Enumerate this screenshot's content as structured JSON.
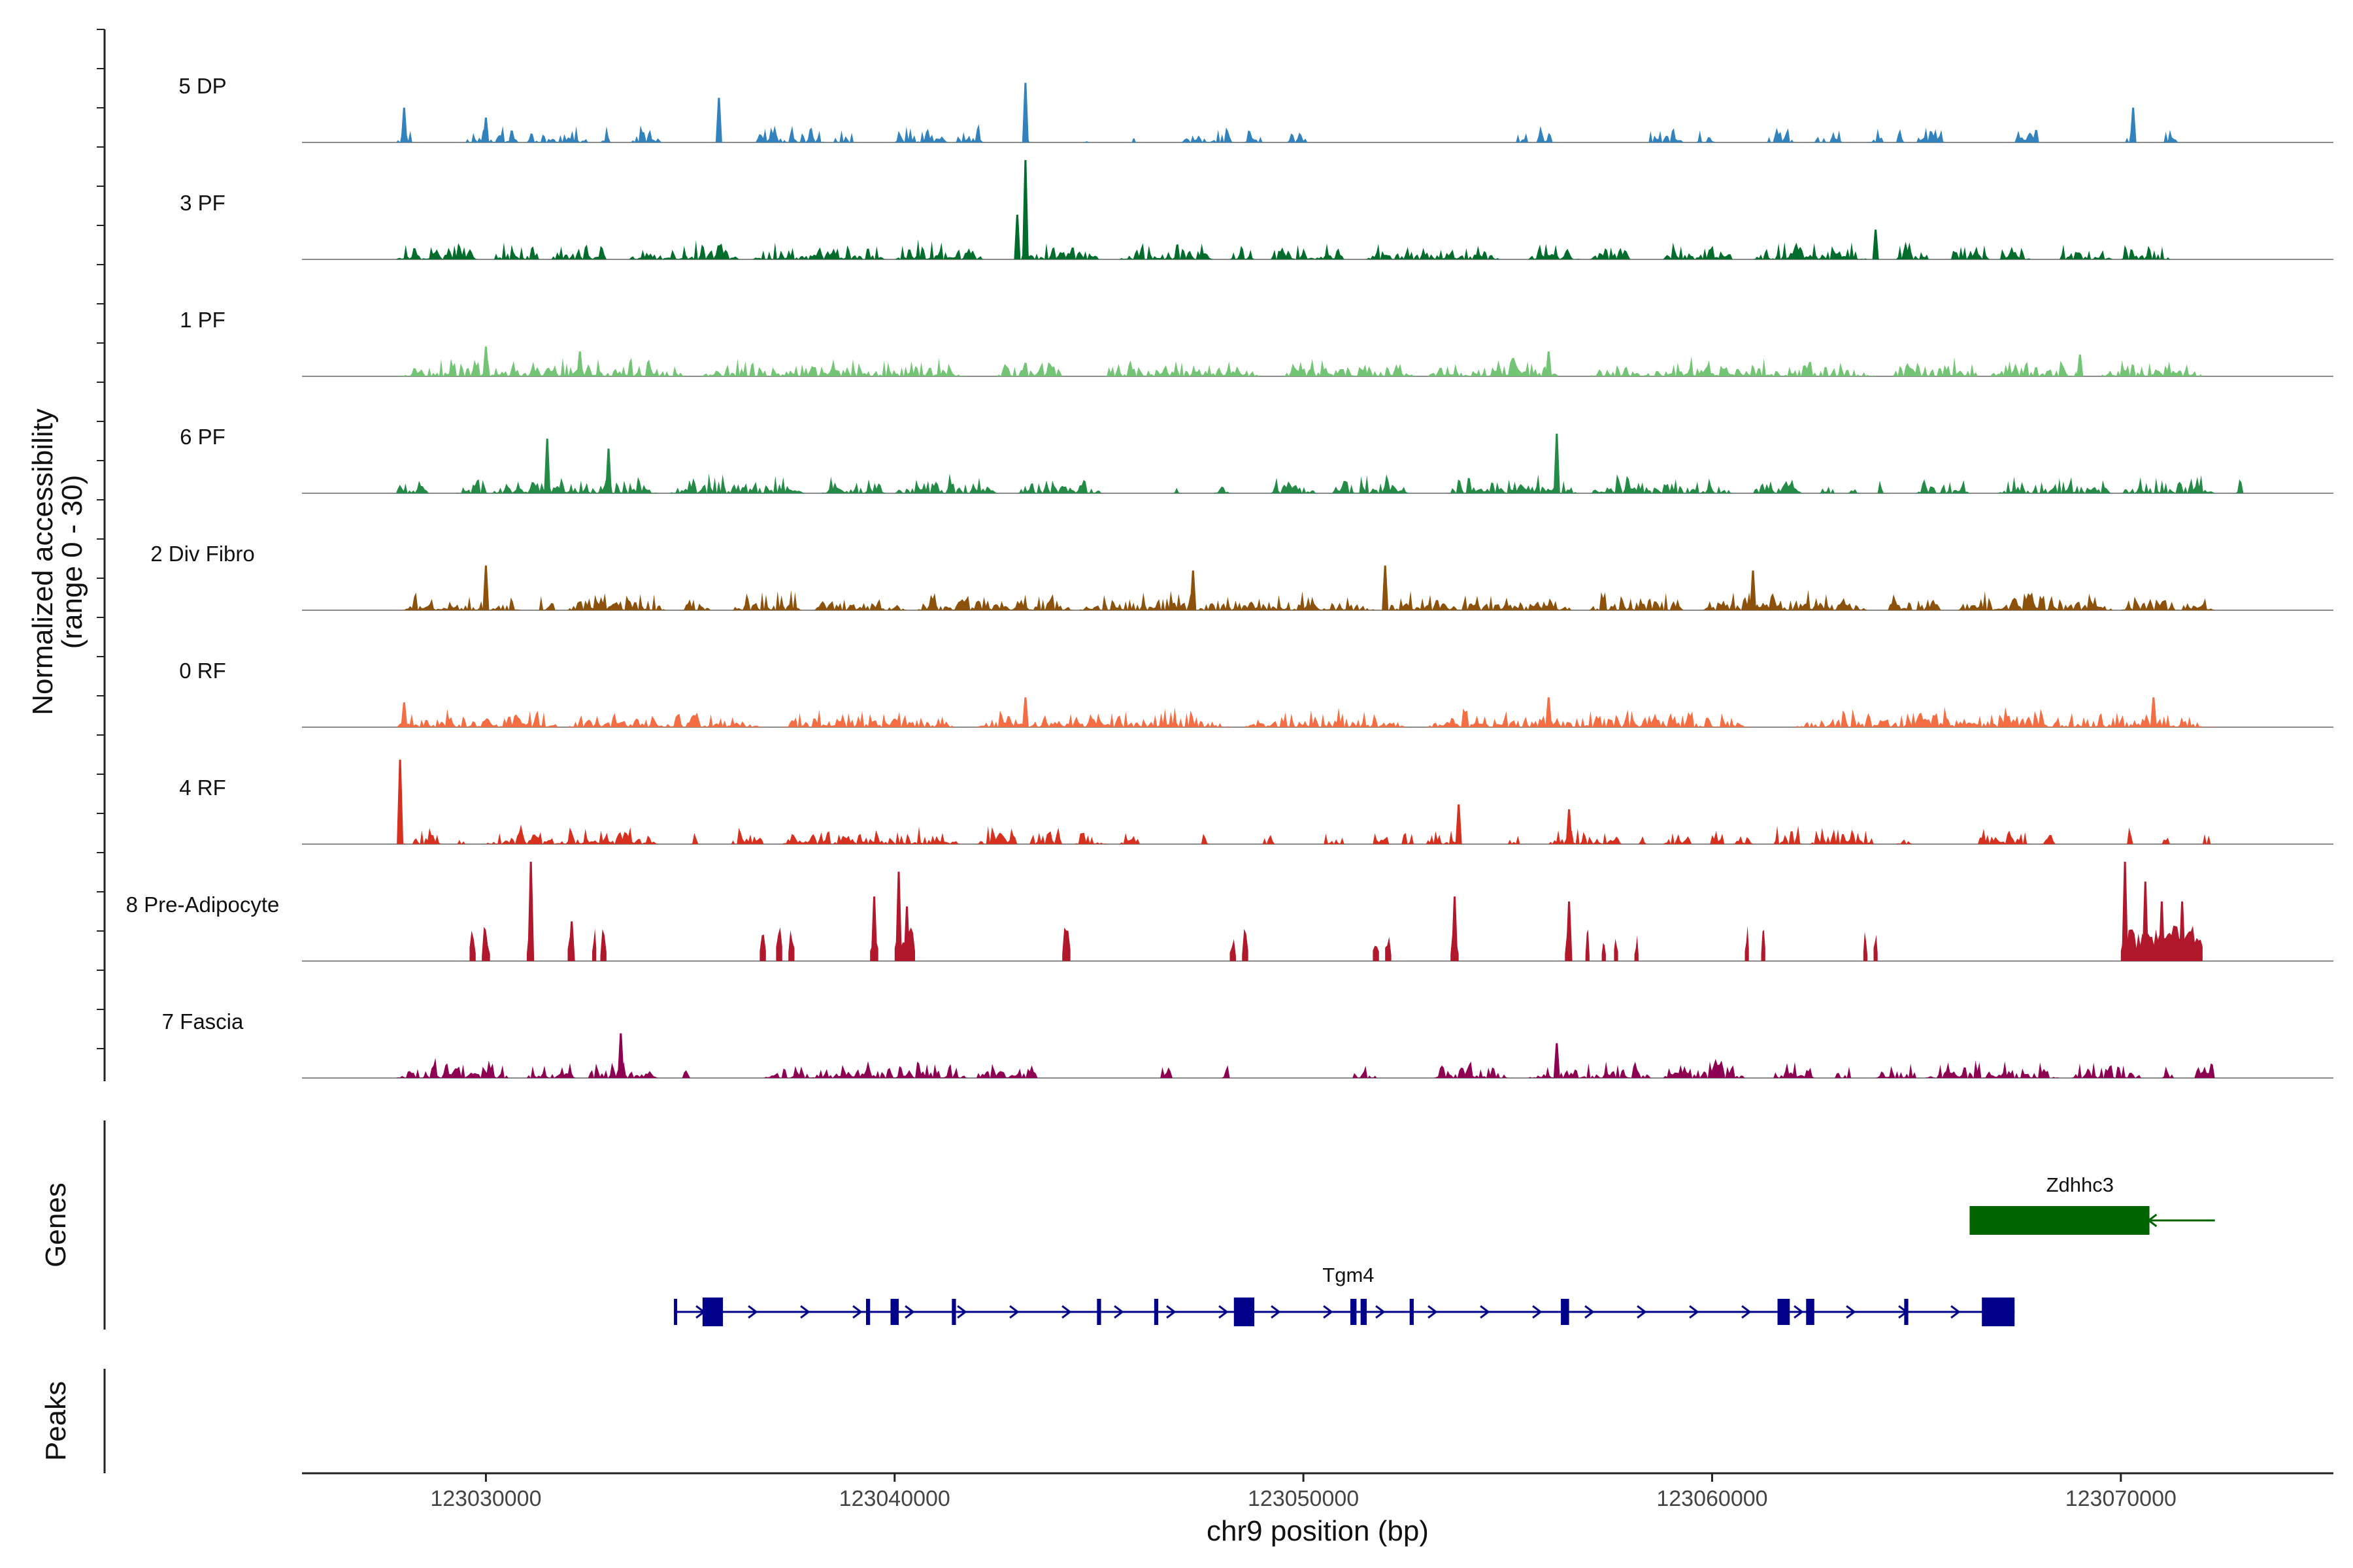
{
  "chart_data": {
    "type": "area",
    "title": "",
    "chromosome": "chr9",
    "xlabel": "chr9 position (bp)",
    "ylabel": "Normalized accessibility",
    "ylabel_sub": "(range 0 - 30)",
    "xlim": [
      123025500,
      123075200
    ],
    "ylim": [
      0,
      30
    ],
    "x_ticks": [
      123030000,
      123040000,
      123050000,
      123060000,
      123070000
    ],
    "x_tick_labels": [
      "123030000",
      "123040000",
      "123050000",
      "123060000",
      "123070000"
    ],
    "panels": [
      {
        "name": "Genes",
        "label": "Genes"
      },
      {
        "name": "Peaks",
        "label": "Peaks"
      }
    ],
    "tracks": [
      {
        "name": "5 DP",
        "color": "#3182bd",
        "regions": [
          [
            123027800,
            123028200
          ],
          [
            123029500,
            123030800
          ],
          [
            123031000,
            123032500
          ],
          [
            123032800,
            123033100
          ],
          [
            123033500,
            123034300
          ],
          [
            123036500,
            123038300
          ],
          [
            123038500,
            123039000
          ],
          [
            123040000,
            123041300
          ],
          [
            123041500,
            123042200
          ],
          [
            123043200,
            123043300
          ],
          [
            123044600,
            123044800
          ],
          [
            123045800,
            123045900
          ],
          [
            123047000,
            123048300
          ],
          [
            123048500,
            123049000
          ],
          [
            123049600,
            123050100
          ],
          [
            123055200,
            123055500
          ],
          [
            123055700,
            123056200
          ],
          [
            123058400,
            123059300
          ],
          [
            123059600,
            123060100
          ],
          [
            123061300,
            123062000
          ],
          [
            123062500,
            123063200
          ],
          [
            123063800,
            123064200
          ],
          [
            123064500,
            123064700
          ],
          [
            123065000,
            123065700
          ],
          [
            123067400,
            123068000
          ],
          [
            123070100,
            123070400
          ],
          [
            123071000,
            123071400
          ]
        ],
        "peaks": [
          [
            123028000,
            0.35
          ],
          [
            123030000,
            0.25
          ],
          [
            123035700,
            0.45
          ],
          [
            123043200,
            0.6
          ],
          [
            123070300,
            0.35
          ]
        ]
      },
      {
        "name": "3 PF",
        "color": "#006d2c",
        "regions": [
          [
            123027800,
            123029800
          ],
          [
            123030200,
            123031300
          ],
          [
            123031600,
            123033000
          ],
          [
            123033500,
            123036200
          ],
          [
            123036500,
            123039800
          ],
          [
            123040000,
            123042200
          ],
          [
            123043000,
            123045000
          ],
          [
            123045500,
            123047800
          ],
          [
            123048200,
            123048800
          ],
          [
            123049200,
            123051000
          ],
          [
            123051500,
            123054800
          ],
          [
            123055500,
            123056800
          ],
          [
            123057000,
            123058000
          ],
          [
            123058800,
            123060500
          ],
          [
            123061000,
            123063800
          ],
          [
            123064500,
            123065300
          ],
          [
            123065800,
            123066800
          ],
          [
            123067000,
            123067800
          ],
          [
            123068500,
            123069800
          ],
          [
            123070000,
            123071200
          ]
        ],
        "peaks": [
          [
            123043200,
            1.0
          ],
          [
            123043000,
            0.45
          ],
          [
            123064000,
            0.3
          ]
        ]
      },
      {
        "name": "1 PF",
        "color": "#74c476",
        "regions": [
          [
            123027800,
            123035000
          ],
          [
            123035200,
            123041800
          ],
          [
            123042500,
            123044100
          ],
          [
            123045000,
            123049000
          ],
          [
            123049500,
            123052800
          ],
          [
            123053000,
            123056300
          ],
          [
            123057000,
            123064000
          ],
          [
            123064400,
            123066500
          ],
          [
            123066800,
            123069000
          ],
          [
            123069500,
            123072000
          ]
        ],
        "peaks": [
          [
            123030000,
            0.3
          ],
          [
            123032300,
            0.25
          ],
          [
            123056000,
            0.25
          ],
          [
            123069000,
            0.22
          ]
        ]
      },
      {
        "name": "6 PF",
        "color": "#238b45",
        "regions": [
          [
            123027800,
            123028600
          ],
          [
            123029200,
            123034200
          ],
          [
            123034500,
            123037800
          ],
          [
            123038200,
            123039800
          ],
          [
            123040000,
            123042500
          ],
          [
            123043000,
            123045100
          ],
          [
            123046800,
            123047000
          ],
          [
            123047800,
            123048200
          ],
          [
            123049200,
            123050300
          ],
          [
            123050700,
            123052600
          ],
          [
            123053500,
            123056700
          ],
          [
            123057000,
            123060500
          ],
          [
            123061000,
            123062200
          ],
          [
            123062600,
            123063000
          ],
          [
            123063300,
            123063600
          ],
          [
            123064000,
            123064200
          ],
          [
            123065000,
            123066300
          ],
          [
            123067000,
            123069800
          ],
          [
            123070000,
            123072300
          ],
          [
            123072800,
            123073000
          ]
        ],
        "peaks": [
          [
            123031500,
            0.55
          ],
          [
            123033000,
            0.45
          ],
          [
            123056200,
            0.6
          ]
        ]
      },
      {
        "name": "2 Div Fibro",
        "color": "#8c510a",
        "regions": [
          [
            123028000,
            123030900
          ],
          [
            123031300,
            123031700
          ],
          [
            123032000,
            123034400
          ],
          [
            123034800,
            123035500
          ],
          [
            123036000,
            123037800
          ],
          [
            123038000,
            123040300
          ],
          [
            123040500,
            123044400
          ],
          [
            123044500,
            123051800
          ],
          [
            123052000,
            123056600
          ],
          [
            123057000,
            123059300
          ],
          [
            123059700,
            123063800
          ],
          [
            123064300,
            123064900
          ],
          [
            123065000,
            123065600
          ],
          [
            123066000,
            123069800
          ],
          [
            123070000,
            123072300
          ]
        ],
        "peaks": [
          [
            123030000,
            0.45
          ],
          [
            123047300,
            0.4
          ],
          [
            123052000,
            0.45
          ],
          [
            123061000,
            0.4
          ]
        ]
      },
      {
        "name": "0 RF",
        "color": "#f46d43",
        "regions": [
          [
            123027800,
            123031800
          ],
          [
            123032000,
            123036800
          ],
          [
            123037200,
            123041500
          ],
          [
            123042000,
            123048200
          ],
          [
            123048500,
            123052500
          ],
          [
            123053000,
            123061000
          ],
          [
            123062000,
            123072300
          ]
        ],
        "peaks": [
          [
            123028000,
            0.25
          ],
          [
            123043200,
            0.3
          ],
          [
            123056000,
            0.3
          ],
          [
            123070800,
            0.3
          ]
        ]
      },
      {
        "name": "4 RF",
        "color": "#d7301f",
        "regions": [
          [
            123027800,
            123028100
          ],
          [
            123028200,
            123028900
          ],
          [
            123029300,
            123029500
          ],
          [
            123030000,
            123034200
          ],
          [
            123035000,
            123035200
          ],
          [
            123036000,
            123036800
          ],
          [
            123037200,
            123041600
          ],
          [
            123042000,
            123043000
          ],
          [
            123043300,
            123044100
          ],
          [
            123044400,
            123045200
          ],
          [
            123045500,
            123046000
          ],
          [
            123047500,
            123047700
          ],
          [
            123049000,
            123049300
          ],
          [
            123050500,
            123051000
          ],
          [
            123051700,
            123052100
          ],
          [
            123052400,
            123052700
          ],
          [
            123053000,
            123053800
          ],
          [
            123055000,
            123055300
          ],
          [
            123056000,
            123057800
          ],
          [
            123058200,
            123058400
          ],
          [
            123058800,
            123059500
          ],
          [
            123059900,
            123060300
          ],
          [
            123060500,
            123061000
          ],
          [
            123061500,
            123062200
          ],
          [
            123062400,
            123064000
          ],
          [
            123064500,
            123064900
          ],
          [
            123066500,
            123067800
          ],
          [
            123068000,
            123068400
          ],
          [
            123070100,
            123070300
          ],
          [
            123071000,
            123071200
          ],
          [
            123072000,
            123072200
          ]
        ],
        "peaks": [
          [
            123027900,
            0.85
          ],
          [
            123053800,
            0.4
          ],
          [
            123056500,
            0.35
          ]
        ]
      },
      {
        "name": "8 Pre-Adipocyte",
        "color": "#b2182b",
        "regions": [
          [
            123029600,
            123029750
          ],
          [
            123029900,
            123030100
          ],
          [
            123031000,
            123031150
          ],
          [
            123032000,
            123032150
          ],
          [
            123032600,
            123032700
          ],
          [
            123032800,
            123032950
          ],
          [
            123036700,
            123036850
          ],
          [
            123037100,
            123037250
          ],
          [
            123037400,
            123037550
          ],
          [
            123039400,
            123039600
          ],
          [
            123040000,
            123040500
          ],
          [
            123044100,
            123044300
          ],
          [
            123048200,
            123048350
          ],
          [
            123048500,
            123048650
          ],
          [
            123051700,
            123051850
          ],
          [
            123052000,
            123052150
          ],
          [
            123053600,
            123053800
          ],
          [
            123056400,
            123056550
          ],
          [
            123056900,
            123057000
          ],
          [
            123057300,
            123057400
          ],
          [
            123057600,
            123057700
          ],
          [
            123058100,
            123058200
          ],
          [
            123060800,
            123060900
          ],
          [
            123061200,
            123061300
          ],
          [
            123063700,
            123063800
          ],
          [
            123063950,
            123064050
          ],
          [
            123070000,
            123072000
          ]
        ],
        "peaks": [
          [
            123031100,
            1.0
          ],
          [
            123032100,
            0.4
          ],
          [
            123039500,
            0.65
          ],
          [
            123040100,
            0.9
          ],
          [
            123040300,
            0.55
          ],
          [
            123053700,
            0.65
          ],
          [
            123056500,
            0.6
          ],
          [
            123070100,
            1.0
          ],
          [
            123070600,
            0.8
          ],
          [
            123071000,
            0.6
          ],
          [
            123071500,
            0.6
          ]
        ]
      },
      {
        "name": "7 Fascia",
        "color": "#8e0152",
        "regions": [
          [
            123027800,
            123030600
          ],
          [
            123031000,
            123032200
          ],
          [
            123032500,
            123034200
          ],
          [
            123034800,
            123035000
          ],
          [
            123036800,
            123041800
          ],
          [
            123042000,
            123043500
          ],
          [
            123046500,
            123046800
          ],
          [
            123048000,
            123048200
          ],
          [
            123051200,
            123051800
          ],
          [
            123053200,
            123055000
          ],
          [
            123055500,
            123058500
          ],
          [
            123058800,
            123060800
          ],
          [
            123061500,
            123062500
          ],
          [
            123063000,
            123063400
          ],
          [
            123064000,
            123065000
          ],
          [
            123065200,
            123068500
          ],
          [
            123068800,
            123070500
          ],
          [
            123071000,
            123071300
          ],
          [
            123071800,
            123072300
          ]
        ],
        "peaks": [
          [
            123033300,
            0.45
          ],
          [
            123056200,
            0.35
          ]
        ]
      }
    ],
    "genes": [
      {
        "name": "Tgm4",
        "strand": "+",
        "color": "#00008b",
        "start": 123034600,
        "end": 123067400,
        "exons": [
          [
            123034600,
            123034680
          ],
          [
            123035300,
            123035800
          ],
          [
            123039300,
            123039400
          ],
          [
            123039900,
            123040100
          ],
          [
            123041400,
            123041500
          ],
          [
            123044950,
            123045050
          ],
          [
            123046350,
            123046450
          ],
          [
            123048300,
            123048800
          ],
          [
            123051150,
            123051300
          ],
          [
            123051400,
            123051550
          ],
          [
            123052600,
            123052700
          ],
          [
            123056300,
            123056500
          ],
          [
            123061600,
            123061900
          ],
          [
            123062300,
            123062500
          ],
          [
            123064700,
            123064800
          ],
          [
            123066600,
            123067400
          ]
        ]
      },
      {
        "name": "Zdhhc3",
        "strand": "-",
        "color": "#006400",
        "start": 123066300,
        "end": 123072300,
        "exons": [
          [
            123066300,
            123070700
          ]
        ]
      }
    ]
  }
}
